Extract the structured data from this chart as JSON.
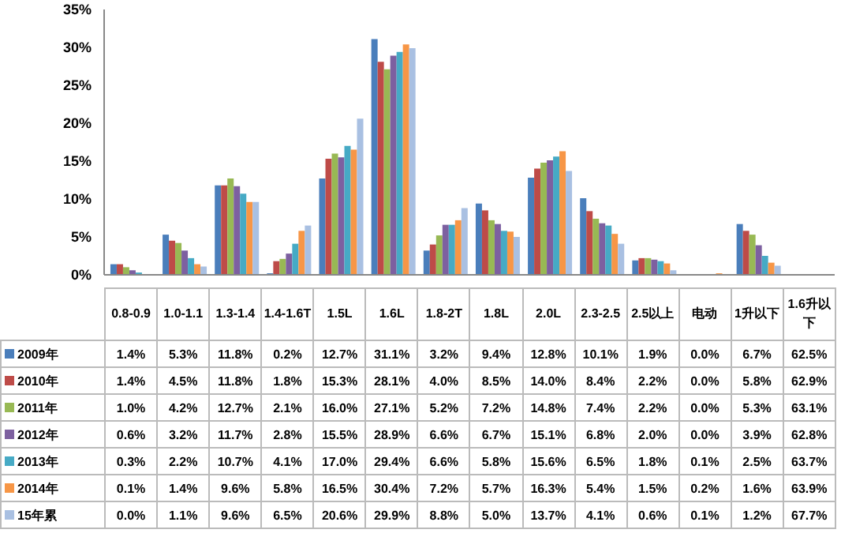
{
  "chart_data": {
    "type": "bar",
    "categories": [
      "0.8-0.9",
      "1.0-1.1",
      "1.3-1.4",
      "1.4-1.6T",
      "1.5L",
      "1.6L",
      "1.8-2T",
      "1.8L",
      "2.0L",
      "2.3-2.5",
      "2.5以上",
      "电动",
      "1升以下",
      "1.6升以下"
    ],
    "ylim": [
      0,
      35
    ],
    "yticks": [
      {
        "value": 0,
        "label": "0%"
      },
      {
        "value": 5,
        "label": "5%"
      },
      {
        "value": 10,
        "label": "10%"
      },
      {
        "value": 15,
        "label": "15%"
      },
      {
        "value": 20,
        "label": "20%"
      },
      {
        "value": 25,
        "label": "25%"
      },
      {
        "value": 30,
        "label": "30%"
      },
      {
        "value": 35,
        "label": "35%"
      }
    ],
    "grid": false,
    "legend": "bottom left",
    "series": [
      {
        "name": "2009年",
        "color": "#4a7ebb",
        "values": [
          1.4,
          5.3,
          11.8,
          0.2,
          12.7,
          31.1,
          3.2,
          9.4,
          12.8,
          10.1,
          1.9,
          0.0,
          6.7,
          null
        ],
        "value_labels": [
          "1.4%",
          "5.3%",
          "11.8%",
          "0.2%",
          "12.7%",
          "31.1%",
          "3.2%",
          "9.4%",
          "12.8%",
          "10.1%",
          "1.9%",
          "0.0%",
          "6.7%",
          "62.5%"
        ]
      },
      {
        "name": "2010年",
        "color": "#be4b48",
        "values": [
          1.4,
          4.5,
          11.8,
          1.8,
          15.3,
          28.1,
          4.0,
          8.5,
          14.0,
          8.4,
          2.2,
          0.0,
          5.8,
          null
        ],
        "value_labels": [
          "1.4%",
          "4.5%",
          "11.8%",
          "1.8%",
          "15.3%",
          "28.1%",
          "4.0%",
          "8.5%",
          "14.0%",
          "8.4%",
          "2.2%",
          "0.0%",
          "5.8%",
          "62.9%"
        ]
      },
      {
        "name": "2011年",
        "color": "#98b954",
        "values": [
          1.0,
          4.2,
          12.7,
          2.1,
          16.0,
          27.1,
          5.2,
          7.2,
          14.8,
          7.4,
          2.2,
          0.0,
          5.3,
          null
        ],
        "value_labels": [
          "1.0%",
          "4.2%",
          "12.7%",
          "2.1%",
          "16.0%",
          "27.1%",
          "5.2%",
          "7.2%",
          "14.8%",
          "7.4%",
          "2.2%",
          "0.0%",
          "5.3%",
          "63.1%"
        ]
      },
      {
        "name": "2012年",
        "color": "#7d60a0",
        "values": [
          0.6,
          3.2,
          11.7,
          2.8,
          15.5,
          28.9,
          6.6,
          6.7,
          15.1,
          6.8,
          2.0,
          0.0,
          3.9,
          null
        ],
        "value_labels": [
          "0.6%",
          "3.2%",
          "11.7%",
          "2.8%",
          "15.5%",
          "28.9%",
          "6.6%",
          "6.7%",
          "15.1%",
          "6.8%",
          "2.0%",
          "0.0%",
          "3.9%",
          "62.8%"
        ]
      },
      {
        "name": "2013年",
        "color": "#46aac5",
        "values": [
          0.3,
          2.2,
          10.7,
          4.1,
          17.0,
          29.4,
          6.6,
          5.8,
          15.6,
          6.5,
          1.8,
          0.1,
          2.5,
          null
        ],
        "value_labels": [
          "0.3%",
          "2.2%",
          "10.7%",
          "4.1%",
          "17.0%",
          "29.4%",
          "6.6%",
          "5.8%",
          "15.6%",
          "6.5%",
          "1.8%",
          "0.1%",
          "2.5%",
          "63.7%"
        ]
      },
      {
        "name": "2014年",
        "color": "#f79646",
        "values": [
          0.1,
          1.4,
          9.6,
          5.8,
          16.5,
          30.4,
          7.2,
          5.7,
          16.3,
          5.4,
          1.5,
          0.2,
          1.6,
          null
        ],
        "value_labels": [
          "0.1%",
          "1.4%",
          "9.6%",
          "5.8%",
          "16.5%",
          "30.4%",
          "7.2%",
          "5.7%",
          "16.3%",
          "5.4%",
          "1.5%",
          "0.2%",
          "1.6%",
          "63.9%"
        ]
      },
      {
        "name": "15年累",
        "color": "#a9c0e2",
        "values": [
          0.0,
          1.1,
          9.6,
          6.5,
          20.6,
          29.9,
          8.8,
          5.0,
          13.7,
          4.1,
          0.6,
          0.1,
          1.2,
          null
        ],
        "value_labels": [
          "0.0%",
          "1.1%",
          "9.6%",
          "6.5%",
          "20.6%",
          "29.9%",
          "8.8%",
          "5.0%",
          "13.7%",
          "4.1%",
          "0.6%",
          "0.1%",
          "1.2%",
          "67.7%"
        ]
      }
    ]
  }
}
